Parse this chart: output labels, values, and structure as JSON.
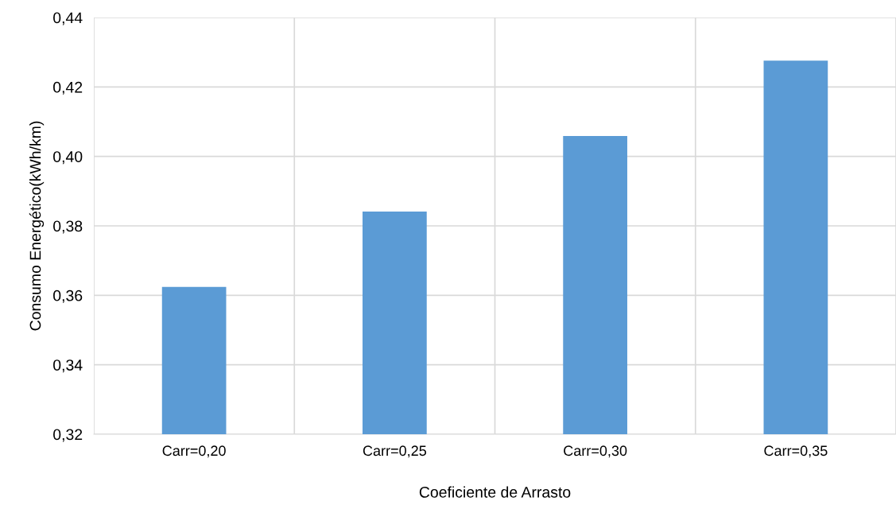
{
  "chart_data": {
    "type": "bar",
    "xlabel": "Coeficiente de Arrasto",
    "ylabel": "Consumo Energético(kWh/km)",
    "categories": [
      "Carr=0,20",
      "Carr=0,25",
      "Carr=0,30",
      "Carr=0,35"
    ],
    "values": [
      0.3624,
      0.3841,
      0.4059,
      0.4276
    ],
    "color": "#5b9bd5",
    "ylim": [
      0.32,
      0.44
    ],
    "yticks": [
      {
        "value": 0.32,
        "label": "0,32"
      },
      {
        "value": 0.34,
        "label": "0,34"
      },
      {
        "value": 0.36,
        "label": "0,36"
      },
      {
        "value": 0.38,
        "label": "0,38"
      },
      {
        "value": 0.4,
        "label": "0,40"
      },
      {
        "value": 0.42,
        "label": "0,42"
      },
      {
        "value": 0.44,
        "label": "0,44"
      }
    ],
    "grid": true
  }
}
